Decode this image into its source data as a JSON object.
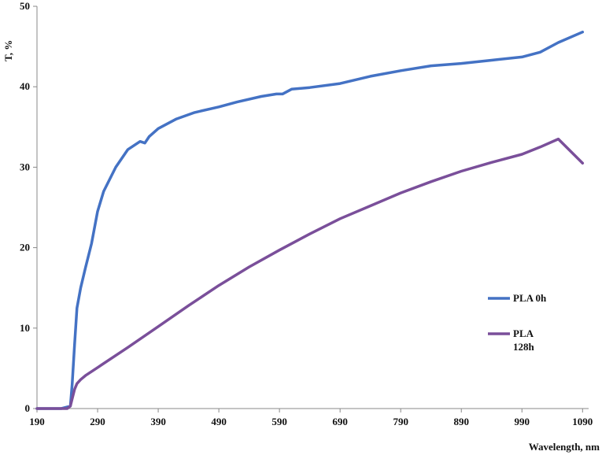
{
  "chart_data": {
    "type": "line",
    "xlabel": "Wavelength, nm",
    "ylabel": "T, %",
    "xlim": [
      190,
      1100
    ],
    "ylim": [
      0,
      50
    ],
    "xticks": [
      190,
      290,
      390,
      490,
      590,
      690,
      790,
      890,
      990,
      1090
    ],
    "yticks": [
      0,
      10,
      20,
      30,
      40,
      50
    ],
    "grid": false,
    "legend_position": "right",
    "series": [
      {
        "name": "PLA 0h",
        "legend_lines": [
          "PLA 0h"
        ],
        "color": "#4472C4",
        "x": [
          190,
          230,
          245,
          248,
          252,
          256,
          262,
          270,
          280,
          290,
          300,
          320,
          340,
          360,
          368,
          375,
          390,
          420,
          450,
          490,
          520,
          560,
          585,
          595,
          610,
          640,
          690,
          740,
          790,
          840,
          890,
          940,
          990,
          1020,
          1050,
          1090
        ],
        "y": [
          0,
          0,
          0.3,
          3,
          8,
          12.5,
          15,
          17.5,
          20.5,
          24.5,
          27,
          30,
          32.2,
          33.2,
          33,
          33.8,
          34.8,
          36,
          36.8,
          37.5,
          38.1,
          38.8,
          39.1,
          39.1,
          39.7,
          39.9,
          40.4,
          41.3,
          42,
          42.6,
          42.9,
          43.3,
          43.7,
          44.3,
          45.5,
          46.8
        ]
      },
      {
        "name": "PLA 128h",
        "legend_lines": [
          "PLA",
          "128h"
        ],
        "color": "#7A4F9A",
        "x": [
          190,
          240,
          245,
          248,
          252,
          256,
          262,
          270,
          290,
          340,
          390,
          440,
          490,
          540,
          590,
          640,
          690,
          740,
          790,
          840,
          890,
          940,
          990,
          1020,
          1050,
          1090
        ],
        "y": [
          0,
          0,
          0.3,
          1.2,
          2.4,
          3.1,
          3.6,
          4.1,
          5.1,
          7.6,
          10.2,
          12.8,
          15.3,
          17.6,
          19.7,
          21.7,
          23.6,
          25.2,
          26.8,
          28.2,
          29.5,
          30.6,
          31.6,
          32.5,
          33.5,
          30.5
        ]
      }
    ]
  }
}
